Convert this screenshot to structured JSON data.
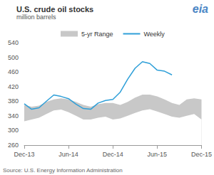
{
  "chart_data": {
    "type": "line",
    "title": "U.S. crude oil stocks",
    "subtitle": "million barrels",
    "source": "Source: U.S. Energy Information Administration",
    "logo": "eia",
    "categories": [
      "Dec-13",
      null,
      null,
      null,
      null,
      null,
      "Jun-14",
      null,
      null,
      null,
      null,
      null,
      "Dec-14",
      null,
      null,
      null,
      null,
      null,
      "Jun-15",
      null,
      null,
      null,
      null,
      null,
      "Dec-15"
    ],
    "series": [
      {
        "name": "5-yr Range",
        "type": "band",
        "color": "#c8c8c8",
        "low": [
          325,
          330,
          335,
          345,
          355,
          357,
          350,
          340,
          330,
          330,
          335,
          338,
          330,
          333,
          340,
          348,
          355,
          358,
          352,
          345,
          338,
          335,
          340,
          345,
          330
        ],
        "high": [
          370,
          365,
          368,
          378,
          385,
          388,
          385,
          378,
          370,
          365,
          372,
          375,
          375,
          370,
          378,
          390,
          398,
          398,
          393,
          385,
          375,
          370,
          385,
          388,
          385
        ]
      },
      {
        "name": "Weekly",
        "type": "line",
        "color": "#2e9fd8",
        "values": [
          373,
          358,
          362,
          380,
          397,
          393,
          387,
          372,
          360,
          358,
          375,
          382,
          385,
          405,
          440,
          470,
          488,
          483,
          465,
          462,
          452,
          null,
          null,
          null,
          null
        ]
      }
    ],
    "ylim": [
      260,
      540
    ],
    "yticks": [
      260,
      300,
      340,
      380,
      420,
      460,
      500,
      540
    ],
    "grid": false,
    "legend": "top"
  }
}
